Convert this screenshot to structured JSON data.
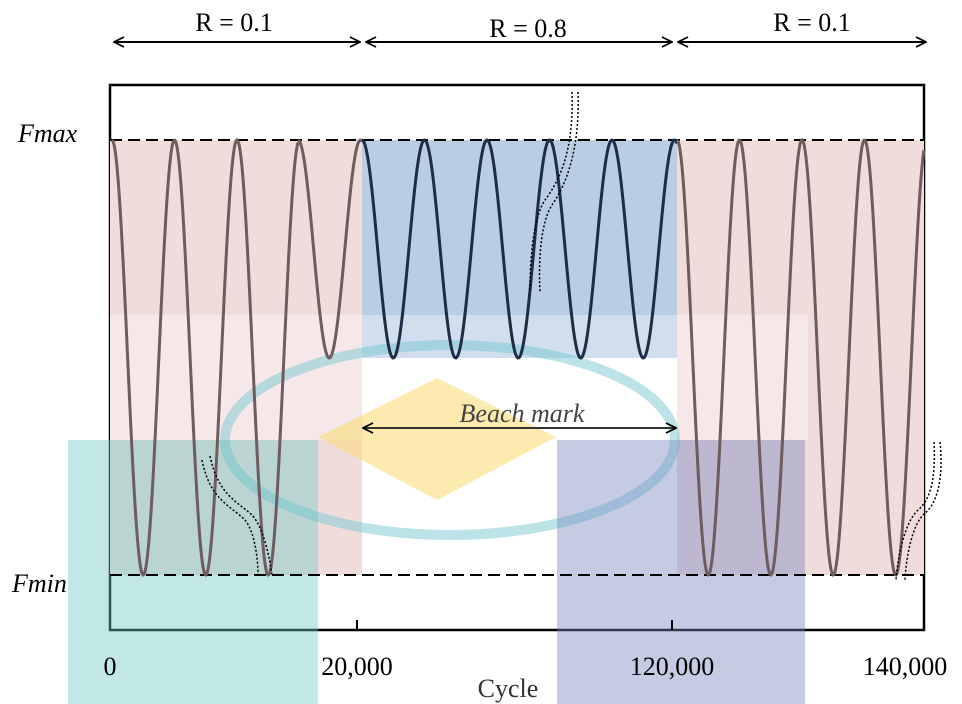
{
  "regions": [
    {
      "label": "R = 0.1"
    },
    {
      "label": "R = 0.8"
    },
    {
      "label": "R = 0.1"
    }
  ],
  "levels": {
    "max": "Fmax",
    "min": "Fmin"
  },
  "beach_mark": "Beach mark",
  "x_axis": {
    "ticks": [
      "0",
      "20,000",
      "120,000",
      "140,000"
    ],
    "label": "Cycle"
  }
}
